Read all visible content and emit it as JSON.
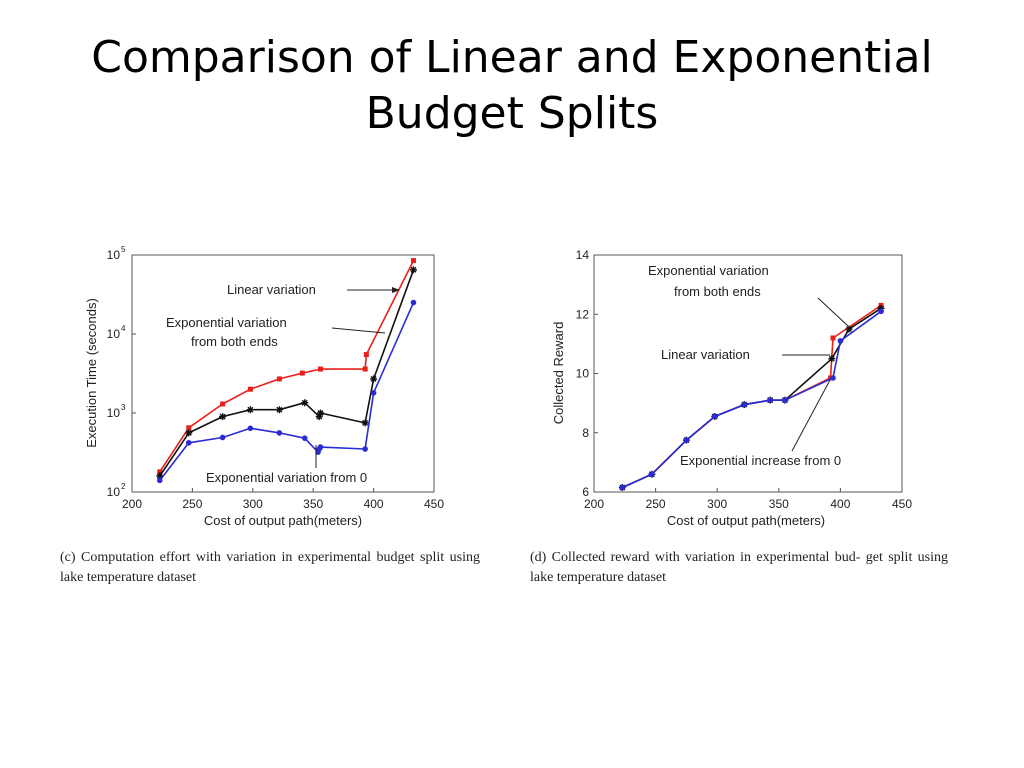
{
  "slide": {
    "title_line1": "Comparison of Linear and Exponential",
    "title_line2": "Budget Splits"
  },
  "captions": {
    "left": "(c) Computation effort with variation in experimental budget split using lake temperature dataset",
    "right": "(d) Collected reward with variation in experimental bud- get split using lake temperature dataset"
  },
  "chart_data": [
    {
      "type": "line",
      "title": "",
      "xlabel": "Cost of output path(meters)",
      "ylabel": "Execution Time (seconds)",
      "xlim": [
        200,
        450
      ],
      "ylim": [
        100,
        100000
      ],
      "y_scale": "log",
      "x_ticks": [
        "200",
        "250",
        "300",
        "350",
        "400",
        "450"
      ],
      "y_ticks": [
        {
          "base": "10",
          "exp": "2",
          "value": 100
        },
        {
          "base": "10",
          "exp": "3",
          "value": 1000
        },
        {
          "base": "10",
          "exp": "4",
          "value": 10000
        },
        {
          "base": "10",
          "exp": "5",
          "value": 100000
        }
      ],
      "grid": false,
      "series": [
        {
          "color": "#e8201a",
          "marker": "square",
          "x": [
            223,
            247,
            275,
            298,
            322,
            341,
            356,
            393,
            394,
            433
          ],
          "y": [
            180,
            650,
            1300,
            2000,
            2700,
            3200,
            3600,
            3600,
            5500,
            85000
          ]
        },
        {
          "color": "#111111",
          "marker": "star",
          "x": [
            223,
            247,
            275,
            298,
            322,
            343,
            355,
            356,
            393,
            400,
            433
          ],
          "y": [
            160,
            560,
            900,
            1100,
            1100,
            1350,
            900,
            1000,
            750,
            2700,
            65000
          ]
        },
        {
          "color": "#2b2bd6",
          "marker": "circle",
          "x": [
            223,
            247,
            275,
            298,
            322,
            343,
            354,
            355,
            356,
            393,
            400,
            433
          ],
          "y": [
            140,
            420,
            490,
            640,
            560,
            480,
            320,
            350,
            370,
            350,
            1800,
            25000
          ]
        }
      ],
      "annotations": [
        {
          "text": "Linear variation"
        },
        {
          "text_line1": "Exponential variation",
          "text_line2": "from both ends"
        },
        {
          "text": "Exponential variation from 0"
        }
      ]
    },
    {
      "type": "line",
      "title": "",
      "xlabel": "Cost of output path(meters)",
      "ylabel": "Collected Reward",
      "xlim": [
        200,
        450
      ],
      "ylim": [
        6,
        14
      ],
      "x_ticks": [
        "200",
        "250",
        "300",
        "350",
        "400",
        "450"
      ],
      "y_ticks": [
        "6",
        "8",
        "10",
        "12",
        "14"
      ],
      "grid": false,
      "series": [
        {
          "color": "#e8201a",
          "marker": "square",
          "x": [
            223,
            247,
            275,
            298,
            322,
            343,
            355,
            392,
            394,
            433
          ],
          "y": [
            6.15,
            6.6,
            7.75,
            8.55,
            8.95,
            9.1,
            9.1,
            9.85,
            11.2,
            12.3
          ]
        },
        {
          "color": "#111111",
          "marker": "star",
          "x": [
            223,
            247,
            275,
            298,
            322,
            343,
            355,
            393,
            407,
            433
          ],
          "y": [
            6.15,
            6.6,
            7.75,
            8.55,
            8.95,
            9.1,
            9.1,
            10.5,
            11.5,
            12.2
          ]
        },
        {
          "color": "#2b2bd6",
          "marker": "circle",
          "x": [
            223,
            247,
            275,
            298,
            322,
            343,
            355,
            394,
            400,
            433
          ],
          "y": [
            6.15,
            6.6,
            7.75,
            8.55,
            8.95,
            9.1,
            9.1,
            9.85,
            11.1,
            12.1
          ]
        }
      ],
      "annotations": [
        {
          "text_line1": "Exponential variation",
          "text_line2": "from both ends"
        },
        {
          "text": "Linear variation"
        },
        {
          "text": "Exponential increase from 0"
        }
      ]
    }
  ]
}
